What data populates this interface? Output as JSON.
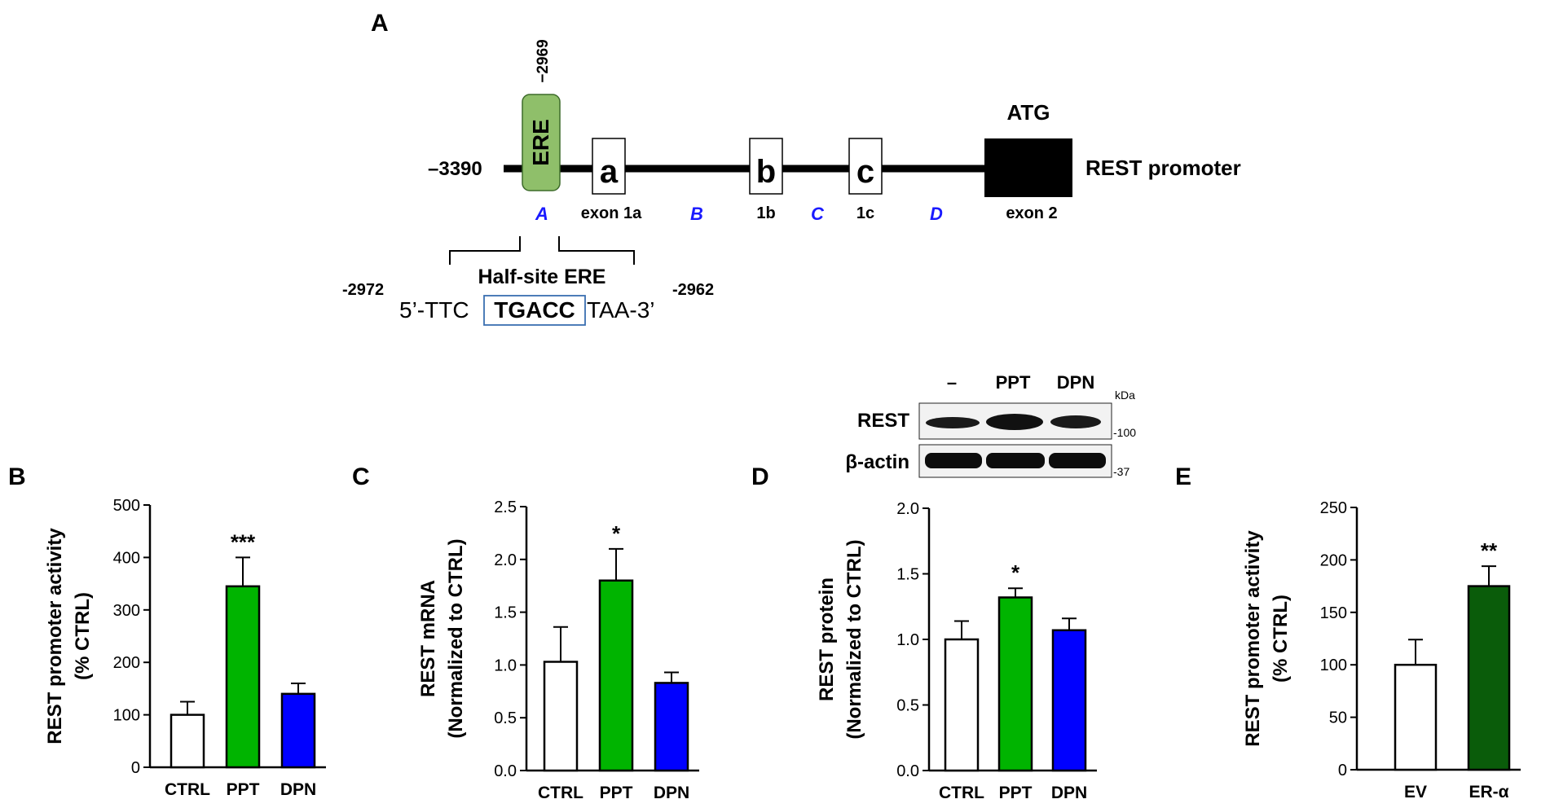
{
  "panels": {
    "A": "A",
    "B": "B",
    "C": "C",
    "D": "D",
    "E": "E"
  },
  "promoter": {
    "start_label": "–3390",
    "ere_label": "ERE",
    "ere_position": "−2969",
    "exons": [
      "a",
      "b",
      "c"
    ],
    "exon_labels": [
      "exon 1a",
      "1b",
      "1c"
    ],
    "atg_label": "ATG",
    "exon2_label": "exon 2",
    "name": "REST promoter",
    "regions": [
      "A",
      "B",
      "C",
      "D"
    ],
    "halfsite_title": "Half-site ERE",
    "seq_left": "-2972",
    "seq_right": "-2962",
    "seq_prefix": "5’-TTC",
    "seq_core": "TGACC",
    "seq_suffix": "TAA-3’",
    "region_color": "#1a1aff",
    "ere_color": "#8fbf6a"
  },
  "western": {
    "lanes": [
      "–",
      "PPT",
      "DPN"
    ],
    "kda": "kDa",
    "rows": [
      "REST",
      "β-actin"
    ],
    "markers": [
      "-100",
      "-37"
    ]
  },
  "chart_data": [
    {
      "panel": "B",
      "type": "bar",
      "categories": [
        "CTRL",
        "PPT",
        "DPN"
      ],
      "values": [
        100,
        345,
        140
      ],
      "errors": [
        25,
        55,
        20
      ],
      "significance": [
        "",
        "***",
        ""
      ],
      "colors": [
        "#ffffff",
        "#00b400",
        "#0000ff"
      ],
      "ylabel": [
        "REST promoter activity",
        "(% CTRL)"
      ],
      "ylim": [
        0,
        500
      ],
      "yticks": [
        "0",
        "100",
        "200",
        "300",
        "400",
        "500"
      ]
    },
    {
      "panel": "C",
      "type": "bar",
      "categories": [
        "CTRL",
        "PPT",
        "DPN"
      ],
      "values": [
        1.03,
        1.8,
        0.83
      ],
      "errors": [
        0.33,
        0.3,
        0.1
      ],
      "significance": [
        "",
        "*",
        ""
      ],
      "colors": [
        "#ffffff",
        "#00b400",
        "#0000ff"
      ],
      "ylabel": [
        "REST mRNA",
        "(Normalized to CTRL)"
      ],
      "ylim": [
        0,
        2.5
      ],
      "yticks": [
        "0.0",
        "0.5",
        "1.0",
        "1.5",
        "2.0",
        "2.5"
      ]
    },
    {
      "panel": "D",
      "type": "bar",
      "categories": [
        "CTRL",
        "PPT",
        "DPN"
      ],
      "values": [
        1.0,
        1.32,
        1.07
      ],
      "errors": [
        0.14,
        0.07,
        0.09
      ],
      "significance": [
        "",
        "*",
        ""
      ],
      "colors": [
        "#ffffff",
        "#00b400",
        "#0000ff"
      ],
      "ylabel": [
        "REST protein",
        "(Normalized to CTRL)"
      ],
      "ylim": [
        0,
        2.0
      ],
      "yticks": [
        "0.0",
        "0.5",
        "1.0",
        "1.5",
        "2.0"
      ]
    },
    {
      "panel": "E",
      "type": "bar",
      "categories": [
        "EV",
        "ER-α"
      ],
      "values": [
        100,
        175
      ],
      "errors": [
        24,
        19
      ],
      "significance": [
        "",
        "**"
      ],
      "colors": [
        "#ffffff",
        "#0a5c0a"
      ],
      "ylabel": [
        "REST promoter activity",
        "(% CTRL)"
      ],
      "ylim": [
        0,
        250
      ],
      "yticks": [
        "0",
        "50",
        "100",
        "150",
        "200",
        "250"
      ]
    }
  ]
}
